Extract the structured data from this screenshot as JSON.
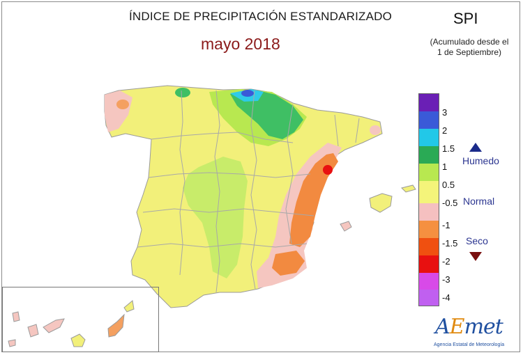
{
  "header": {
    "title": "ÍNDICE DE PRECIPITACIÓN ESTANDARIZADO",
    "subtitle": "mayo 2018"
  },
  "index_box": {
    "label": "SPI",
    "note_line1": "(Acumulado desde el",
    "note_line2": "1 de Septiembre)"
  },
  "legend": {
    "ticks": [
      "3",
      "2",
      "1.5",
      "1",
      "0.5",
      "-0.5",
      "-1",
      "-1.5",
      "-2",
      "-3",
      "-4"
    ],
    "colors": [
      "#6a1fb5",
      "#3a5ad8",
      "#22c8e8",
      "#2aaa55",
      "#b8e850",
      "#f4f47a",
      "#f5c0c0",
      "#f59040",
      "#f05010",
      "#e81010",
      "#c040e0"
    ],
    "categories": {
      "wet": "Humedo",
      "normal": "Normal",
      "dry": "Seco"
    }
  },
  "logo": {
    "text_a": "A",
    "text_e": "E",
    "text_rest": "met",
    "subtitle": "Agencia Estatal de Meteorología"
  }
}
